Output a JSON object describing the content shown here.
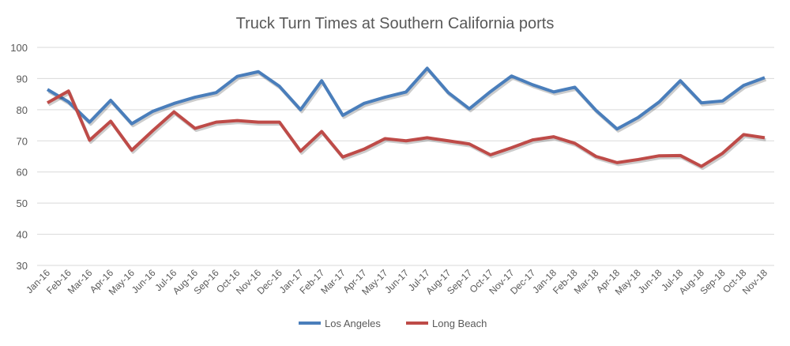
{
  "chart_data": {
    "type": "line",
    "title": "Truck Turn Times at Southern California ports",
    "xlabel": "",
    "ylabel": "",
    "ylim": [
      30,
      100
    ],
    "yticks": [
      30,
      40,
      50,
      60,
      70,
      80,
      90,
      100
    ],
    "grid": true,
    "legend_position": "bottom",
    "categories": [
      "Jan-16",
      "Feb-16",
      "Mar-16",
      "Apr-16",
      "May-16",
      "Jun-16",
      "Jul-16",
      "Aug-16",
      "Sep-16",
      "Oct-16",
      "Nov-16",
      "Dec-16",
      "Jan-17",
      "Feb-17",
      "Mar-17",
      "Apr-17",
      "May-17",
      "Jun-17",
      "Jul-17",
      "Aug-17",
      "Sep-17",
      "Oct-17",
      "Nov-17",
      "Dec-17",
      "Jan-18",
      "Feb-18",
      "Mar-18",
      "Apr-18",
      "May-18",
      "Jun-18",
      "Jul-18",
      "Aug-18",
      "Sep-18",
      "Oct-18",
      "Nov-18"
    ],
    "series": [
      {
        "name": "Los Angeles",
        "color": "#4a7ebb",
        "values": [
          86.5,
          82.5,
          76,
          83,
          75.5,
          79.5,
          82,
          84,
          85.5,
          90.7,
          92.2,
          87.5,
          80,
          89.3,
          78.2,
          82,
          84,
          85.7,
          93.3,
          85.5,
          80.3,
          85.8,
          90.8,
          88,
          85.7,
          87.2,
          79.8,
          73.8,
          77.5,
          82.5,
          89.3,
          82.2,
          82.8,
          87.8,
          90.3
        ]
      },
      {
        "name": "Long Beach",
        "color": "#be4b48",
        "values": [
          82.2,
          86,
          70.2,
          76.3,
          67,
          73.3,
          79.3,
          74,
          76,
          76.5,
          76,
          76,
          66.7,
          73,
          64.8,
          67.3,
          70.7,
          70,
          71,
          70,
          69,
          65.5,
          67.8,
          70.3,
          71.3,
          69.2,
          65,
          63,
          64,
          65.2,
          65.3,
          61.8,
          66,
          72,
          71
        ]
      }
    ]
  }
}
